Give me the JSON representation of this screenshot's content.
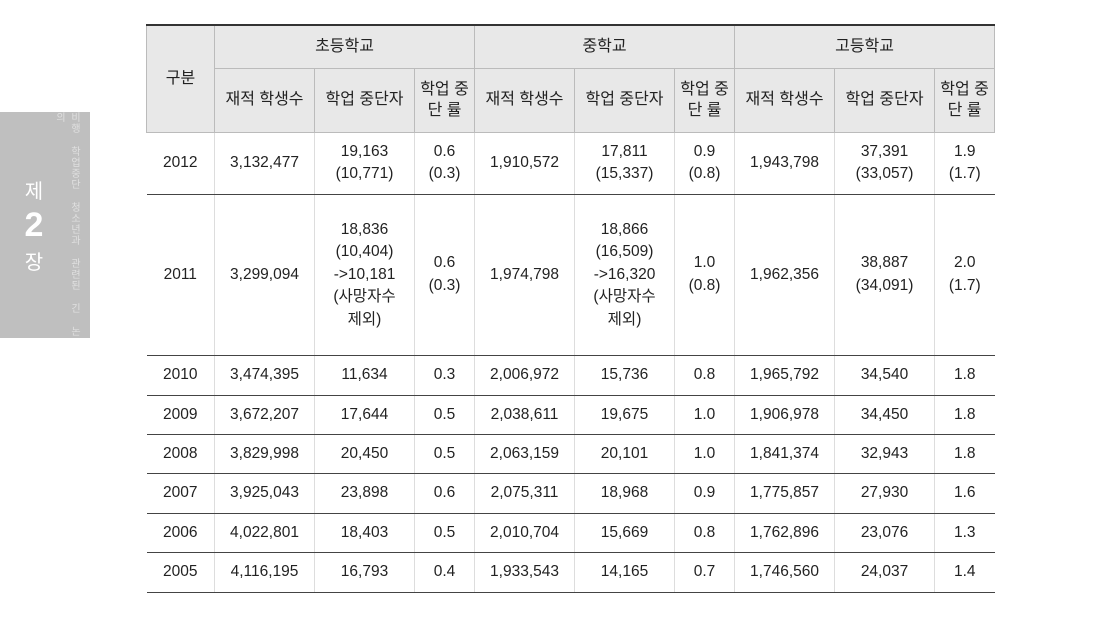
{
  "side": {
    "line1": "제",
    "num": "2",
    "line2": "장",
    "sub": "비행 학업중단 청소년과 관련된 긴 논의"
  },
  "table": {
    "header": {
      "gubun": "구분",
      "groups": [
        "초등학교",
        "중학교",
        "고등학교"
      ],
      "sub": [
        "재적\n학생수",
        "학업\n중단자",
        "학업\n중단\n률"
      ]
    },
    "rows": [
      {
        "year": "2012",
        "cells": [
          "3,132,477",
          "19,163\n(10,771)",
          "0.6\n(0.3)",
          "1,910,572",
          "17,811\n(15,337)",
          "0.9\n(0.8)",
          "1,943,798",
          "37,391\n(33,057)",
          "1.9\n(1.7)"
        ]
      },
      {
        "year": "2011",
        "tall": true,
        "cells": [
          "3,299,094",
          "18,836\n(10,404)\n->10,181\n(사망자수\n제외)",
          "0.6\n(0.3)",
          "1,974,798",
          "18,866\n(16,509)\n->16,320\n(사망자수\n제외)",
          "1.0\n(0.8)",
          "1,962,356",
          "38,887\n(34,091)",
          "2.0\n(1.7)"
        ]
      },
      {
        "year": "2010",
        "cells": [
          "3,474,395",
          "11,634",
          "0.3",
          "2,006,972",
          "15,736",
          "0.8",
          "1,965,792",
          "34,540",
          "1.8"
        ]
      },
      {
        "year": "2009",
        "cells": [
          "3,672,207",
          "17,644",
          "0.5",
          "2,038,611",
          "19,675",
          "1.0",
          "1,906,978",
          "34,450",
          "1.8"
        ]
      },
      {
        "year": "2008",
        "cells": [
          "3,829,998",
          "20,450",
          "0.5",
          "2,063,159",
          "20,101",
          "1.0",
          "1,841,374",
          "32,943",
          "1.8"
        ]
      },
      {
        "year": "2007",
        "cells": [
          "3,925,043",
          "23,898",
          "0.6",
          "2,075,311",
          "18,968",
          "0.9",
          "1,775,857",
          "27,930",
          "1.6"
        ]
      },
      {
        "year": "2006",
        "cells": [
          "4,022,801",
          "18,403",
          "0.5",
          "2,010,704",
          "15,669",
          "0.8",
          "1,762,896",
          "23,076",
          "1.3"
        ]
      },
      {
        "year": "2005",
        "cells": [
          "4,116,195",
          "16,793",
          "0.4",
          "1,933,543",
          "14,165",
          "0.7",
          "1,746,560",
          "24,037",
          "1.4"
        ]
      }
    ]
  },
  "colors": {
    "header_bg": "#e8e8e8",
    "border": "#bbbbbb",
    "row_border": "#444444",
    "side_bg": "#bfbfbf",
    "text": "#222222"
  }
}
